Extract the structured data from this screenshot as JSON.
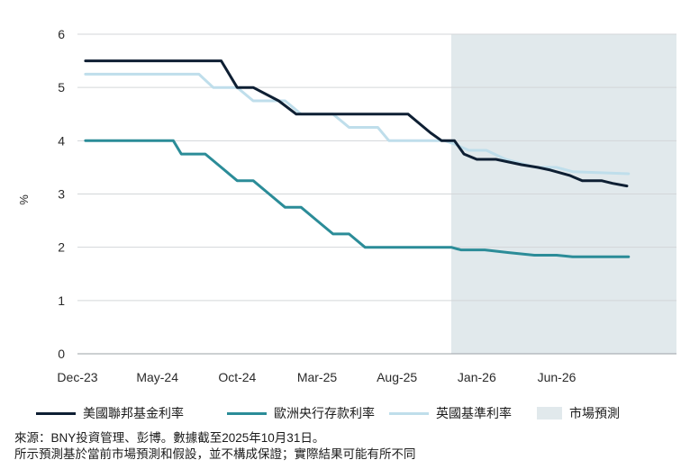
{
  "chart_data": {
    "type": "line",
    "title": "",
    "xlabel": "",
    "ylabel": "%",
    "ylim": [
      0,
      6
    ],
    "yticks": [
      "0",
      "1",
      "2",
      "3",
      "4",
      "5",
      "6"
    ],
    "xlim": [
      0,
      37.5
    ],
    "xticks": [
      {
        "label": "Dec-23",
        "x": 0
      },
      {
        "label": "May-24",
        "x": 5
      },
      {
        "label": "Oct-24",
        "x": 10
      },
      {
        "label": "Mar-25",
        "x": 15
      },
      {
        "label": "Aug-25",
        "x": 20
      },
      {
        "label": "Jan-26",
        "x": 25
      },
      {
        "label": "Jun-26",
        "x": 30
      }
    ],
    "grid": true,
    "forecast_region": {
      "label": "市場預測",
      "x_start": 23.4,
      "x_end": 37.5
    },
    "series": [
      {
        "name": "美國聯邦基金利率",
        "color": "#0e1f33",
        "points": [
          [
            0.5,
            5.5
          ],
          [
            9,
            5.5
          ],
          [
            10,
            5.0
          ],
          [
            11,
            5.0
          ],
          [
            12.6,
            4.75
          ],
          [
            13.7,
            4.5
          ],
          [
            18.8,
            4.5
          ],
          [
            20.7,
            4.5
          ],
          [
            22.1,
            4.15
          ],
          [
            22.8,
            4.0
          ],
          [
            23.6,
            4.0
          ],
          [
            24.2,
            3.75
          ],
          [
            25,
            3.65
          ],
          [
            26.2,
            3.65
          ],
          [
            27.8,
            3.55
          ],
          [
            28.8,
            3.5
          ],
          [
            29.6,
            3.45
          ],
          [
            30.8,
            3.35
          ],
          [
            31.6,
            3.25
          ],
          [
            32.8,
            3.25
          ],
          [
            33.5,
            3.2
          ],
          [
            34.4,
            3.15
          ]
        ]
      },
      {
        "name": "歐洲央行存款利率",
        "color": "#2b8c98",
        "points": [
          [
            0.5,
            4.0
          ],
          [
            6,
            4.0
          ],
          [
            6.5,
            3.75
          ],
          [
            8,
            3.75
          ],
          [
            9,
            3.5
          ],
          [
            10,
            3.25
          ],
          [
            11,
            3.25
          ],
          [
            12,
            3.0
          ],
          [
            13,
            2.75
          ],
          [
            14,
            2.75
          ],
          [
            15,
            2.5
          ],
          [
            16,
            2.25
          ],
          [
            17,
            2.25
          ],
          [
            18,
            2.0
          ],
          [
            23.4,
            2.0
          ],
          [
            24,
            1.95
          ],
          [
            25.5,
            1.95
          ],
          [
            27,
            1.9
          ],
          [
            28.6,
            1.85
          ],
          [
            30,
            1.85
          ],
          [
            31,
            1.82
          ],
          [
            34.5,
            1.82
          ]
        ]
      },
      {
        "name": "英國基準利率",
        "color": "#bfdeeb",
        "points": [
          [
            0.5,
            5.25
          ],
          [
            7.6,
            5.25
          ],
          [
            8.5,
            5.0
          ],
          [
            10,
            5.0
          ],
          [
            11,
            4.75
          ],
          [
            13,
            4.75
          ],
          [
            14,
            4.5
          ],
          [
            16,
            4.5
          ],
          [
            17,
            4.25
          ],
          [
            18.8,
            4.25
          ],
          [
            19.5,
            4.0
          ],
          [
            23,
            4.0
          ],
          [
            23.5,
            3.95
          ],
          [
            24.5,
            3.82
          ],
          [
            25.6,
            3.82
          ],
          [
            26.8,
            3.65
          ],
          [
            28.7,
            3.5
          ],
          [
            30,
            3.5
          ],
          [
            31,
            3.42
          ],
          [
            34.5,
            3.38
          ]
        ]
      }
    ]
  },
  "legend": [
    {
      "label": "美國聯邦基金利率",
      "color": "#0e1f33",
      "kind": "line"
    },
    {
      "label": "歐洲央行存款利率",
      "color": "#2b8c98",
      "kind": "line"
    },
    {
      "label": "英國基準利率",
      "color": "#bfdeeb",
      "kind": "line"
    },
    {
      "label": "市場預測",
      "color": "#e1e9ec",
      "kind": "box"
    }
  ],
  "notes": {
    "source": "來源：BNY投資管理、彭博。數據截至2025年10月31日。",
    "disclaimer": "所示預測基於當前市場預測和假設，並不構成保證；實際結果可能有所不同"
  }
}
